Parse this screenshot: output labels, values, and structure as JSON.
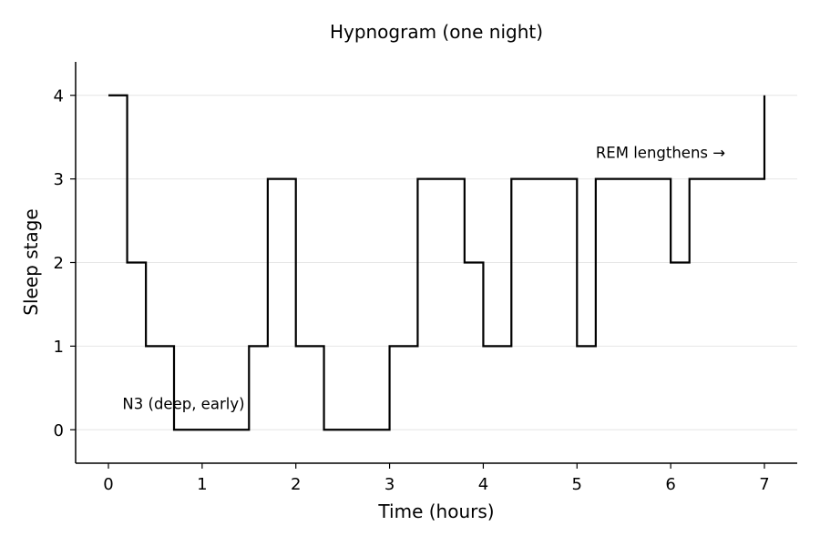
{
  "chart_data": {
    "type": "line",
    "title": "Hypnogram (one night)",
    "xlabel": "Time (hours)",
    "ylabel": "Sleep stage",
    "xlim": [
      -0.35,
      7.35
    ],
    "ylim": [
      -0.4,
      4.4
    ],
    "x_ticks": [
      0,
      1,
      2,
      3,
      4,
      5,
      6,
      7
    ],
    "y_ticks": [
      0,
      1,
      2,
      3,
      4
    ],
    "grid": "horizontal",
    "line_color": "#000000",
    "step": "post",
    "x": [
      0,
      0.2,
      0.4,
      0.7,
      1.5,
      1.7,
      2.0,
      2.3,
      3.0,
      3.3,
      3.8,
      4.0,
      4.3,
      5.0,
      5.2,
      6.0,
      6.2,
      7.0
    ],
    "y": [
      4,
      2,
      1,
      0,
      1,
      3,
      1,
      0,
      1,
      3,
      2,
      1,
      3,
      1,
      3,
      2,
      3,
      4
    ],
    "annotations": [
      {
        "text": "N3 (deep, early)",
        "x": 0.15,
        "y": 0.25
      },
      {
        "text": "REM lengthens →",
        "x": 5.2,
        "y": 3.25
      }
    ]
  }
}
